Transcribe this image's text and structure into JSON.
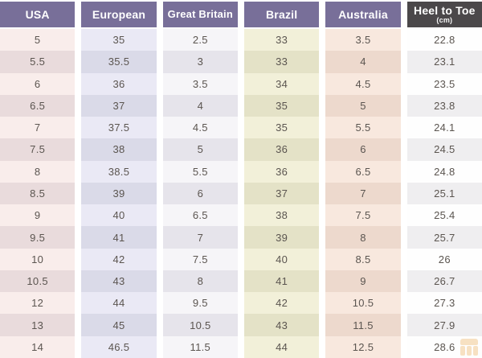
{
  "chart_data": {
    "type": "table",
    "description": "Shoe size conversion table",
    "row_count": 15,
    "column_count": 6,
    "columns": [
      {
        "id": "usa",
        "label": "USA",
        "values": [
          "5",
          "5.5",
          "6",
          "6.5",
          "7",
          "7.5",
          "8",
          "8.5",
          "9",
          "9.5",
          "10",
          "10.5",
          "12",
          "13",
          "14"
        ]
      },
      {
        "id": "european",
        "label": "European",
        "values": [
          "35",
          "35.5",
          "36",
          "37",
          "37.5",
          "38",
          "38.5",
          "39",
          "40",
          "41",
          "42",
          "43",
          "44",
          "45",
          "46.5"
        ]
      },
      {
        "id": "great-britain",
        "label": "Great Britain",
        "values": [
          "2.5",
          "3",
          "3.5",
          "4",
          "4.5",
          "5",
          "5.5",
          "6",
          "6.5",
          "7",
          "7.5",
          "8",
          "9.5",
          "10.5",
          "11.5"
        ]
      },
      {
        "id": "brazil",
        "label": "Brazil",
        "values": [
          "33",
          "33",
          "34",
          "35",
          "35",
          "36",
          "36",
          "37",
          "38",
          "39",
          "40",
          "41",
          "42",
          "43",
          "44"
        ]
      },
      {
        "id": "australia",
        "label": "Australia",
        "values": [
          "3.5",
          "4",
          "4.5",
          "5",
          "5.5",
          "6",
          "6.5",
          "7",
          "7.5",
          "8",
          "8.5",
          "9",
          "10.5",
          "11.5",
          "12.5"
        ]
      },
      {
        "id": "heel-to-toe",
        "label": "Heel to Toe",
        "sublabel": "(cm)",
        "dark_header": true,
        "values": [
          "22.8",
          "23.1",
          "23.5",
          "23.8",
          "24.1",
          "24.5",
          "24.8",
          "25.1",
          "25.4",
          "25.7",
          "26",
          "26.7",
          "27.3",
          "27.9",
          "28.6"
        ]
      }
    ],
    "layout": {
      "stripes": "alternating-rows",
      "gaps": "white vertical gutters between columns"
    }
  },
  "colors": {
    "header_bg": "#786f99",
    "header_dark_bg": "#4b484a",
    "header_text": "#ffffff",
    "cell_text": "#5b5550",
    "column_tints": {
      "usa": [
        "#f9edeb",
        "#e9dbdc"
      ],
      "european": [
        "#eae9f5",
        "#dadae8"
      ],
      "great-britain": [
        "#f6f5f8",
        "#e6e4eb"
      ],
      "brazil": [
        "#f2f0d9",
        "#e4e2c7"
      ],
      "australia": [
        "#f8e8de",
        "#edd9cd"
      ],
      "heel-to-toe": [
        "#fefefe",
        "#efeef0"
      ]
    },
    "watermark": "#e8a23c"
  }
}
